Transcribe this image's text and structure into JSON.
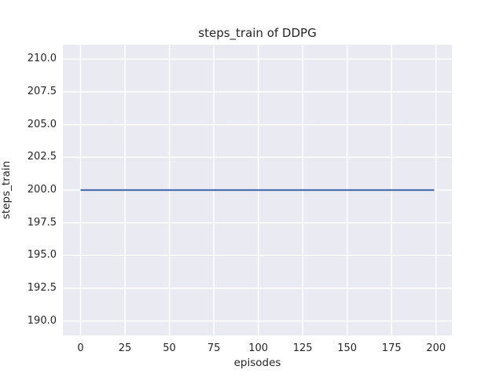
{
  "chart_data": {
    "type": "line",
    "title": "steps_train of DDPG",
    "xlabel": "episodes",
    "ylabel": "steps_train",
    "xlim": [
      -9.95,
      208.95
    ],
    "ylim": [
      188.9,
      211.1
    ],
    "xticks": [
      0,
      25,
      50,
      75,
      100,
      125,
      150,
      175,
      200
    ],
    "xticklabels": [
      "0",
      "25",
      "50",
      "75",
      "100",
      "125",
      "150",
      "175",
      "200"
    ],
    "yticks": [
      190.0,
      192.5,
      195.0,
      197.5,
      200.0,
      202.5,
      205.0,
      207.5,
      210.0
    ],
    "yticklabels": [
      "190.0",
      "192.5",
      "195.0",
      "197.5",
      "200.0",
      "202.5",
      "205.0",
      "207.5",
      "210.0"
    ],
    "grid": true,
    "legend": false,
    "series": [
      {
        "name": "steps_train",
        "x": [
          0,
          199
        ],
        "y": [
          200,
          200
        ],
        "color": "#4c72b0"
      }
    ],
    "style": {
      "axes_background": "#eaeaf2",
      "grid_color": "#ffffff",
      "text_color": "#262626",
      "figure_background": "#ffffff"
    }
  }
}
